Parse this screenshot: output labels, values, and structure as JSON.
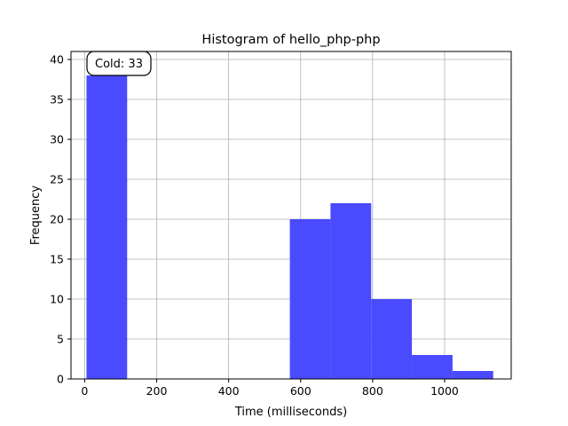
{
  "chart_data": {
    "type": "bar",
    "title": "Histogram of hello_php-php",
    "xlabel": "Time (milliseconds)",
    "ylabel": "Frequency",
    "xlim": [
      -38,
      1185
    ],
    "ylim": [
      0,
      41
    ],
    "xticks": [
      0,
      200,
      400,
      600,
      800,
      1000
    ],
    "yticks": [
      0,
      5,
      10,
      15,
      20,
      25,
      30,
      35,
      40
    ],
    "grid": true,
    "bar_color": "#4a4aff",
    "bins": [
      {
        "x0": 5,
        "x1": 118,
        "count": 38
      },
      {
        "x0": 118,
        "x1": 231,
        "count": 0
      },
      {
        "x0": 231,
        "x1": 344,
        "count": 0
      },
      {
        "x0": 344,
        "x1": 457,
        "count": 0
      },
      {
        "x0": 457,
        "x1": 570,
        "count": 0
      },
      {
        "x0": 570,
        "x1": 683,
        "count": 20
      },
      {
        "x0": 683,
        "x1": 796,
        "count": 22
      },
      {
        "x0": 796,
        "x1": 909,
        "count": 10
      },
      {
        "x0": 909,
        "x1": 1022,
        "count": 3
      },
      {
        "x0": 1022,
        "x1": 1135,
        "count": 1
      }
    ],
    "annotation": "Cold: 33"
  }
}
